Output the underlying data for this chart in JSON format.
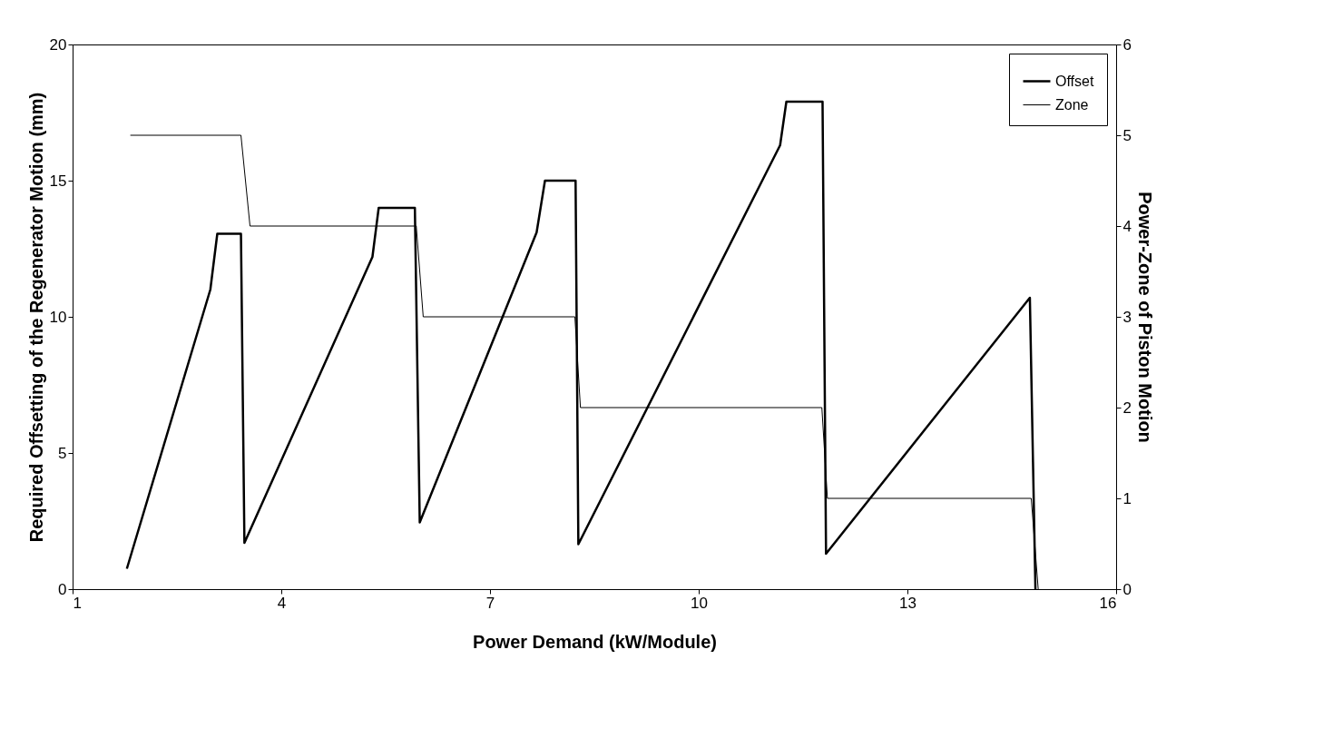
{
  "chart_data": {
    "type": "line",
    "xlabel": "Power Demand (kW/Module)",
    "ylabel": "Required Offsetting of the Regenerator Motion  (mm)",
    "y2label": "Power-Zone of Piston Motion",
    "xlim": [
      1,
      16
    ],
    "xticks": [
      1,
      4,
      7,
      10,
      13,
      16
    ],
    "ylim": [
      0,
      20
    ],
    "yticks": [
      0,
      5,
      10,
      15,
      20
    ],
    "y2lim": [
      0,
      6
    ],
    "y2ticks": [
      0,
      1,
      2,
      3,
      4,
      5,
      6
    ],
    "grid": false,
    "legend": "top right",
    "marker": "none",
    "line_style": "solid",
    "series": [
      {
        "name": "Offset",
        "color": "#000000",
        "x": [
          1.78,
          2.98,
          3.08,
          3.42,
          3.47,
          5.31,
          5.4,
          5.92,
          5.99,
          7.67,
          7.79,
          8.23,
          8.27,
          11.17,
          11.26,
          11.78,
          11.83,
          14.76,
          14.84
        ],
        "values": [
          0.75,
          11.0,
          13.05,
          13.05,
          1.7,
          12.2,
          14.0,
          14.0,
          2.45,
          13.1,
          15.0,
          15.0,
          1.65,
          16.3,
          17.9,
          17.9,
          1.3,
          10.7,
          0
        ]
      },
      {
        "name": "Zone",
        "color": "#000000",
        "axis": "y2",
        "x": [
          1.83,
          3.42,
          3.55,
          5.94,
          6.04,
          8.22,
          8.3,
          11.77,
          11.85,
          14.78,
          14.88
        ],
        "values": [
          5,
          5,
          4,
          4,
          3,
          3,
          2,
          2,
          1,
          1,
          0
        ]
      }
    ]
  }
}
